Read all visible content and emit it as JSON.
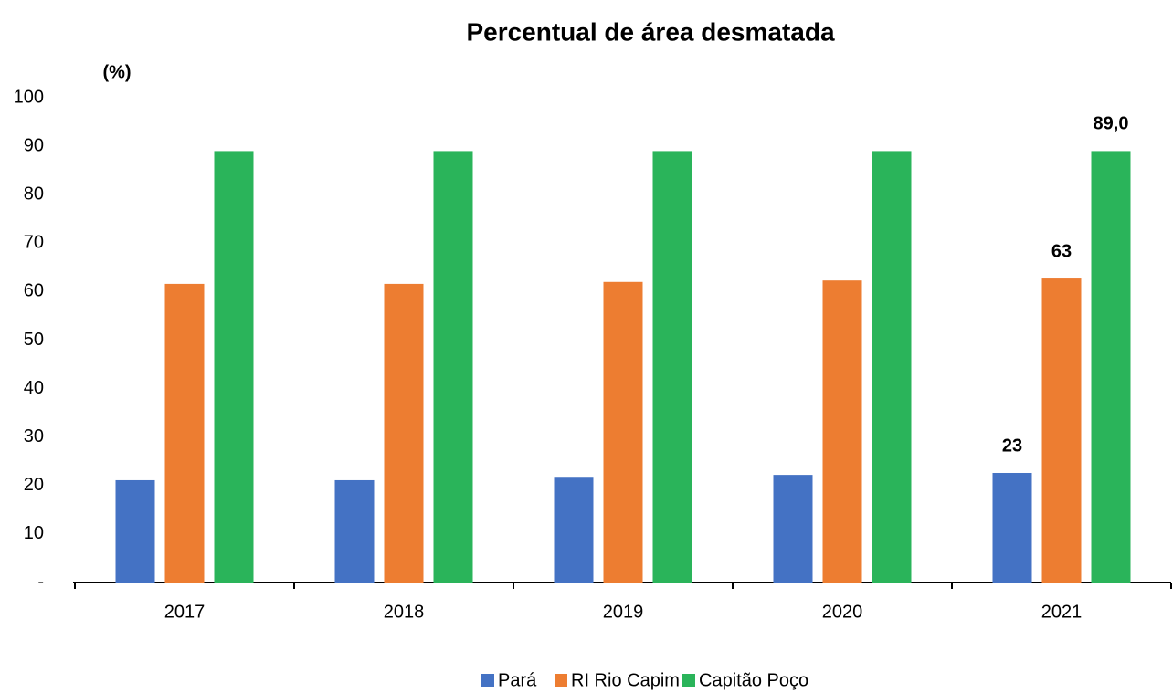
{
  "chart_data": {
    "type": "bar",
    "title": "Percentual de área desmatada",
    "y_label": "(%)",
    "categories": [
      "2017",
      "2018",
      "2019",
      "2020",
      "2021"
    ],
    "series": [
      {
        "name": "Pará",
        "color": "#4472c4",
        "values": [
          21.1,
          21.1,
          21.8,
          22.2,
          22.6
        ],
        "value_labels": [
          null,
          null,
          null,
          null,
          "23"
        ]
      },
      {
        "name": "RI Rio Capim",
        "color": "#ed7d31",
        "values": [
          61.6,
          61.6,
          62.0,
          62.3,
          62.7
        ],
        "value_labels": [
          null,
          null,
          null,
          null,
          "63"
        ]
      },
      {
        "name": "Capitão Poço",
        "color": "#2ab45a",
        "values": [
          89.0,
          89.0,
          89.0,
          89.0,
          89.0
        ],
        "value_labels": [
          null,
          null,
          null,
          null,
          "89,0"
        ]
      }
    ],
    "ylim": [
      0,
      100
    ],
    "yticks": [
      {
        "value": 0,
        "label": "-"
      },
      10,
      20,
      30,
      40,
      50,
      60,
      70,
      80,
      90,
      100
    ],
    "grid": false,
    "legend": "bottom"
  }
}
